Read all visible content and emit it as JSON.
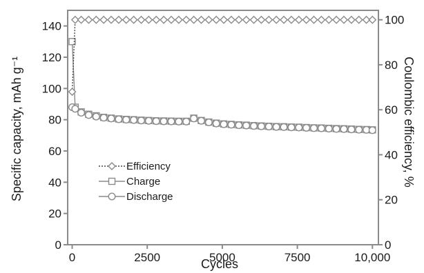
{
  "chart_data": {
    "type": "scatter",
    "xlabel": "Cycles",
    "ylabel_left": "Specific capacity, mAh g⁻¹",
    "ylabel_right": "Coulombic efficiency, %",
    "xlim": [
      -150,
      10200
    ],
    "ylim_left": [
      0,
      150
    ],
    "ylim_right": [
      0,
      104.2
    ],
    "x_ticks": [
      0,
      2500,
      5000,
      7500,
      10000
    ],
    "x_tick_labels": [
      "0",
      "2500",
      "5000",
      "7500",
      "10,000"
    ],
    "y_left_ticks": [
      0,
      20,
      40,
      60,
      80,
      100,
      120,
      140
    ],
    "y_left_tick_labels": [
      "0",
      "20",
      "40",
      "60",
      "80",
      "100",
      "120",
      "140"
    ],
    "y_right_ticks": [
      0,
      20,
      40,
      60,
      80,
      100
    ],
    "y_right_tick_labels": [
      "0",
      "20",
      "40",
      "60",
      "80",
      "100"
    ],
    "legend_position": "lower-left",
    "grid": false,
    "colors": {
      "series": "#8a8a8a",
      "axis": "#8a8a8a",
      "marker_fill": "#ffffff"
    },
    "series": [
      {
        "name": "Efficiency",
        "axis": "right",
        "marker": "diamond",
        "line": "dotted",
        "points": [
          [
            0,
            68
          ],
          [
            100,
            100
          ],
          [
            300,
            100
          ],
          [
            550,
            100
          ],
          [
            800,
            100
          ],
          [
            1050,
            100
          ],
          [
            1300,
            100
          ],
          [
            1550,
            100
          ],
          [
            1800,
            100
          ],
          [
            2050,
            100
          ],
          [
            2300,
            100
          ],
          [
            2550,
            100
          ],
          [
            2800,
            100
          ],
          [
            3050,
            100
          ],
          [
            3300,
            100
          ],
          [
            3550,
            100
          ],
          [
            3800,
            100
          ],
          [
            4050,
            100
          ],
          [
            4300,
            100
          ],
          [
            4550,
            100
          ],
          [
            4800,
            100
          ],
          [
            5050,
            100
          ],
          [
            5300,
            100
          ],
          [
            5550,
            100
          ],
          [
            5800,
            100
          ],
          [
            6050,
            100
          ],
          [
            6300,
            100
          ],
          [
            6550,
            100
          ],
          [
            6800,
            100
          ],
          [
            7050,
            100
          ],
          [
            7300,
            100
          ],
          [
            7550,
            100
          ],
          [
            7800,
            100
          ],
          [
            8050,
            100
          ],
          [
            8300,
            100
          ],
          [
            8550,
            100
          ],
          [
            8800,
            100
          ],
          [
            9050,
            100
          ],
          [
            9300,
            100
          ],
          [
            9550,
            100
          ],
          [
            9800,
            100
          ],
          [
            10000,
            100
          ]
        ]
      },
      {
        "name": "Charge",
        "axis": "left",
        "marker": "square",
        "line": "solid",
        "points": [
          [
            0,
            130
          ],
          [
            100,
            88
          ],
          [
            300,
            85
          ],
          [
            550,
            83.5
          ],
          [
            800,
            82.5
          ],
          [
            1050,
            81.5
          ],
          [
            1300,
            81
          ],
          [
            1550,
            80.5
          ],
          [
            1800,
            80.2
          ],
          [
            2050,
            80
          ],
          [
            2300,
            79.7
          ],
          [
            2550,
            79.5
          ],
          [
            2800,
            79.3
          ],
          [
            3050,
            79.2
          ],
          [
            3300,
            79.1
          ],
          [
            3550,
            79
          ],
          [
            3800,
            79
          ],
          [
            4050,
            81
          ],
          [
            4300,
            79.5
          ],
          [
            4550,
            78.5
          ],
          [
            4800,
            77.8
          ],
          [
            5050,
            77.3
          ],
          [
            5300,
            77
          ],
          [
            5550,
            76.7
          ],
          [
            5800,
            76.5
          ],
          [
            6050,
            76.2
          ],
          [
            6300,
            76
          ],
          [
            6550,
            75.8
          ],
          [
            6800,
            75.6
          ],
          [
            7050,
            75.5
          ],
          [
            7300,
            75.3
          ],
          [
            7550,
            75.2
          ],
          [
            7800,
            75
          ],
          [
            8050,
            74.8
          ],
          [
            8300,
            74.7
          ],
          [
            8550,
            74.5
          ],
          [
            8800,
            74.3
          ],
          [
            9050,
            74.2
          ],
          [
            9300,
            74
          ],
          [
            9550,
            73.8
          ],
          [
            9800,
            73.7
          ],
          [
            10000,
            73.5
          ]
        ]
      },
      {
        "name": "Discharge",
        "axis": "left",
        "marker": "circle",
        "line": "solid",
        "points": [
          [
            0,
            88
          ],
          [
            100,
            87
          ],
          [
            300,
            84.5
          ],
          [
            550,
            83
          ],
          [
            800,
            82
          ],
          [
            1050,
            81.3
          ],
          [
            1300,
            80.8
          ],
          [
            1550,
            80.3
          ],
          [
            1800,
            80
          ],
          [
            2050,
            79.8
          ],
          [
            2300,
            79.5
          ],
          [
            2550,
            79.3
          ],
          [
            2800,
            79.1
          ],
          [
            3050,
            79
          ],
          [
            3300,
            78.9
          ],
          [
            3550,
            78.8
          ],
          [
            3800,
            78.8
          ],
          [
            4050,
            80.8
          ],
          [
            4300,
            79.3
          ],
          [
            4550,
            78.3
          ],
          [
            4800,
            77.6
          ],
          [
            5050,
            77.1
          ],
          [
            5300,
            76.8
          ],
          [
            5550,
            76.5
          ],
          [
            5800,
            76.3
          ],
          [
            6050,
            76
          ],
          [
            6300,
            75.8
          ],
          [
            6550,
            75.6
          ],
          [
            6800,
            75.4
          ],
          [
            7050,
            75.3
          ],
          [
            7300,
            75.1
          ],
          [
            7550,
            75
          ],
          [
            7800,
            74.8
          ],
          [
            8050,
            74.6
          ],
          [
            8300,
            74.5
          ],
          [
            8550,
            74.3
          ],
          [
            8800,
            74.1
          ],
          [
            9050,
            74
          ],
          [
            9300,
            73.8
          ],
          [
            9550,
            73.6
          ],
          [
            9800,
            73.5
          ],
          [
            10000,
            73.3
          ]
        ]
      }
    ]
  }
}
